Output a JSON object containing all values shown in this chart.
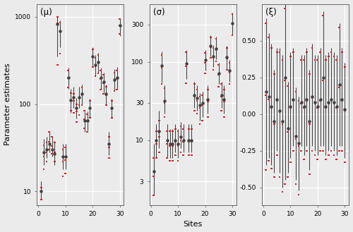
{
  "mu_sites": [
    1,
    2,
    3,
    4,
    5,
    6,
    7,
    8,
    9,
    10,
    11,
    12,
    13,
    14,
    15,
    16,
    17,
    18,
    19,
    20,
    21,
    22,
    23,
    24,
    25,
    26,
    27,
    28,
    29,
    30
  ],
  "mu_m1_est": [
    10,
    28,
    30,
    35,
    30,
    27,
    820,
    680,
    25,
    25,
    200,
    110,
    120,
    90,
    120,
    130,
    65,
    65,
    90,
    350,
    280,
    300,
    200,
    180,
    130,
    35,
    90,
    190,
    200,
    800
  ],
  "mu_m1_lo": [
    8,
    20,
    24,
    28,
    25,
    20,
    350,
    450,
    18,
    18,
    150,
    80,
    90,
    68,
    90,
    100,
    48,
    50,
    70,
    270,
    210,
    230,
    148,
    135,
    98,
    26,
    68,
    145,
    148,
    600
  ],
  "mu_m1_hi": [
    13,
    40,
    42,
    48,
    42,
    38,
    1000,
    900,
    35,
    35,
    260,
    148,
    158,
    118,
    158,
    168,
    82,
    82,
    116,
    445,
    365,
    385,
    260,
    230,
    168,
    48,
    116,
    250,
    265,
    960
  ],
  "mu_m2_est": [
    8,
    25,
    28,
    37,
    33,
    28,
    840,
    690,
    22,
    23,
    198,
    108,
    108,
    82,
    98,
    126,
    67,
    63,
    88,
    342,
    272,
    292,
    193,
    172,
    126,
    32,
    88,
    183,
    192,
    792
  ],
  "mu_m2_lo": [
    6,
    18,
    22,
    30,
    27,
    22,
    280,
    380,
    15,
    16,
    155,
    84,
    80,
    62,
    75,
    97,
    53,
    48,
    70,
    265,
    208,
    226,
    146,
    132,
    97,
    24,
    70,
    140,
    146,
    635
  ],
  "mu_m2_hi": [
    11,
    34,
    36,
    48,
    42,
    36,
    1000,
    850,
    30,
    32,
    242,
    134,
    132,
    100,
    120,
    154,
    84,
    76,
    108,
    420,
    340,
    362,
    242,
    215,
    158,
    42,
    108,
    230,
    242,
    938
  ],
  "sigma_sites": [
    1,
    2,
    3,
    4,
    5,
    6,
    7,
    8,
    9,
    10,
    11,
    12,
    13,
    14,
    15,
    16,
    17,
    18,
    19,
    20,
    21,
    22,
    23,
    24,
    25,
    26,
    27,
    28,
    29,
    30
  ],
  "sigma_m1_est": [
    4,
    10,
    13,
    90,
    32,
    10,
    9,
    9,
    10,
    9,
    11,
    10,
    95,
    10,
    10,
    38,
    35,
    28,
    30,
    105,
    33,
    160,
    118,
    148,
    72,
    38,
    33,
    115,
    78,
    310
  ],
  "sigma_m1_lo": [
    2,
    6,
    8,
    55,
    22,
    6,
    6,
    6,
    7,
    6,
    8,
    7,
    60,
    7,
    7,
    26,
    24,
    18,
    20,
    78,
    22,
    118,
    86,
    108,
    52,
    26,
    22,
    83,
    56,
    225
  ],
  "sigma_m1_hi": [
    9,
    16,
    24,
    135,
    50,
    16,
    14,
    14,
    16,
    14,
    17,
    16,
    142,
    16,
    16,
    56,
    50,
    40,
    42,
    142,
    50,
    218,
    165,
    210,
    98,
    56,
    50,
    162,
    106,
    425
  ],
  "sigma_m2_est": [
    3.5,
    9,
    11,
    85,
    30,
    9,
    8.5,
    8.5,
    9.5,
    8.5,
    10,
    9.5,
    88,
    9.5,
    9.5,
    36,
    32,
    26,
    28,
    98,
    31,
    155,
    112,
    142,
    68,
    36,
    31,
    110,
    73,
    305
  ],
  "sigma_m2_lo": [
    2,
    6,
    7,
    52,
    20,
    6,
    5.5,
    5.5,
    6.5,
    5.5,
    7,
    6.5,
    54,
    6.5,
    6.5,
    24,
    22,
    16,
    18,
    72,
    20,
    112,
    80,
    102,
    48,
    24,
    20,
    79,
    52,
    218
  ],
  "sigma_m2_hi": [
    6,
    13,
    18,
    122,
    46,
    13,
    13,
    13,
    14,
    13,
    15,
    14,
    134,
    14,
    14,
    52,
    44,
    36,
    38,
    130,
    44,
    205,
    152,
    198,
    92,
    52,
    44,
    152,
    98,
    408
  ],
  "xi_sites": [
    1,
    2,
    3,
    4,
    5,
    6,
    7,
    8,
    9,
    10,
    11,
    12,
    13,
    14,
    15,
    16,
    17,
    18,
    19,
    20,
    21,
    22,
    23,
    24,
    25,
    26,
    27,
    28,
    29,
    30
  ],
  "xi_m1_est": [
    0.15,
    0.12,
    0.05,
    -0.05,
    0.1,
    0.02,
    -0.05,
    0.25,
    -0.1,
    0.05,
    0.1,
    -0.15,
    -0.2,
    0.08,
    0.05,
    0.1,
    -0.05,
    0.12,
    0.08,
    0.05,
    0.1,
    0.25,
    0.05,
    0.08,
    0.1,
    0.08,
    0.05,
    0.2,
    0.1,
    0.03
  ],
  "xi_m1_lo": [
    -0.35,
    -0.3,
    -0.35,
    -0.4,
    -0.25,
    -0.4,
    -0.5,
    -0.45,
    -0.4,
    -0.3,
    -0.22,
    -0.45,
    -0.52,
    -0.22,
    -0.28,
    -0.22,
    -0.38,
    -0.22,
    -0.25,
    -0.28,
    -0.22,
    -0.22,
    -0.28,
    -0.25,
    -0.22,
    -0.25,
    -0.28,
    -0.22,
    -0.22,
    -0.3
  ],
  "xi_m1_hi": [
    0.65,
    0.55,
    0.48,
    0.3,
    0.45,
    0.45,
    0.4,
    0.75,
    0.22,
    0.42,
    0.45,
    0.18,
    0.12,
    0.4,
    0.4,
    0.45,
    0.3,
    0.48,
    0.4,
    0.4,
    0.45,
    0.7,
    0.4,
    0.42,
    0.45,
    0.42,
    0.4,
    0.62,
    0.45,
    0.35
  ],
  "xi_m2_est": [
    0.13,
    0.1,
    0.04,
    -0.07,
    0.09,
    0.01,
    -0.07,
    0.23,
    -0.12,
    0.04,
    0.09,
    -0.17,
    -0.22,
    0.07,
    0.04,
    0.09,
    -0.07,
    0.11,
    0.07,
    0.04,
    0.09,
    0.23,
    0.04,
    0.07,
    0.09,
    0.07,
    0.04,
    0.18,
    0.09,
    0.02
  ],
  "xi_m2_lo": [
    -0.38,
    -0.32,
    -0.37,
    -0.43,
    -0.28,
    -0.43,
    -0.53,
    -0.48,
    -0.43,
    -0.33,
    -0.25,
    -0.48,
    -0.55,
    -0.25,
    -0.31,
    -0.25,
    -0.41,
    -0.25,
    -0.28,
    -0.31,
    -0.25,
    -0.25,
    -0.31,
    -0.28,
    -0.25,
    -0.28,
    -0.31,
    -0.25,
    -0.25,
    -0.33
  ],
  "xi_m2_hi": [
    0.62,
    0.52,
    0.45,
    0.27,
    0.42,
    0.42,
    0.37,
    0.72,
    0.19,
    0.39,
    0.42,
    0.15,
    0.09,
    0.37,
    0.37,
    0.42,
    0.27,
    0.45,
    0.37,
    0.37,
    0.42,
    0.67,
    0.37,
    0.39,
    0.42,
    0.39,
    0.37,
    0.59,
    0.42,
    0.32
  ],
  "bg_color": "#ebebeb",
  "grid_color": "#ffffff",
  "m1_color": "#404040",
  "m2_color": "#cc2222",
  "xlabel": "Sites",
  "ylabel": "Parameter estimates",
  "panel_labels": [
    "(μ)",
    "(σ)",
    "(ξ)"
  ]
}
